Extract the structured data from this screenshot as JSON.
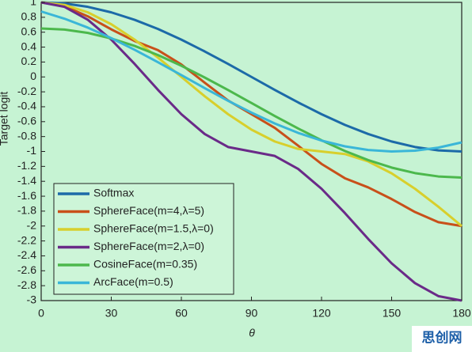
{
  "chart_data": {
    "type": "line",
    "xlabel": "θ",
    "ylabel": "Target logit",
    "x": [
      0,
      10,
      20,
      30,
      40,
      50,
      60,
      70,
      80,
      90,
      100,
      110,
      120,
      130,
      140,
      150,
      160,
      170,
      180
    ],
    "xlim": [
      0,
      180
    ],
    "xticks": [
      0,
      30,
      60,
      90,
      120,
      150,
      180
    ],
    "ylim": [
      -3,
      1
    ],
    "yticks": [
      1,
      0.8,
      0.6,
      0.4,
      0.2,
      0,
      -0.2,
      -0.4,
      -0.6,
      -0.8,
      -1,
      -1.2,
      -1.4,
      -1.6,
      -1.8,
      -2,
      -2.2,
      -2.4,
      -2.6,
      -2.8,
      -3
    ],
    "legend": "lower left",
    "series": [
      {
        "name": "Softmax",
        "color": "#1c6aa8",
        "values": [
          1,
          0.985,
          0.94,
          0.866,
          0.766,
          0.643,
          0.5,
          0.342,
          0.174,
          0,
          -0.174,
          -0.342,
          -0.5,
          -0.643,
          -0.766,
          -0.866,
          -0.94,
          -0.985,
          -1
        ]
      },
      {
        "name": "SphereFace(m=4,λ=5)",
        "color": "#c8501a",
        "values": [
          1,
          0.948,
          0.812,
          0.638,
          0.482,
          0.359,
          0.167,
          -0.077,
          -0.316,
          -0.5,
          -0.684,
          -0.923,
          -1.167,
          -1.359,
          -1.482,
          -1.638,
          -1.812,
          -1.948,
          -2
        ]
      },
      {
        "name": "SphereFace(m=1.5,λ=0)",
        "color": "#d8cf2c",
        "values": [
          1,
          0.966,
          0.866,
          0.707,
          0.5,
          0.259,
          0,
          -0.259,
          -0.5,
          -0.707,
          -0.866,
          -0.966,
          -1,
          -1.034,
          -1.134,
          -1.293,
          -1.5,
          -1.741,
          -2
        ]
      },
      {
        "name": "SphereFace(m=2,λ=0)",
        "color": "#6a2a88",
        "values": [
          1,
          0.94,
          0.766,
          0.5,
          0.174,
          -0.174,
          -0.5,
          -0.766,
          -0.94,
          -1,
          -1.06,
          -1.234,
          -1.5,
          -1.826,
          -2.174,
          -2.5,
          -2.766,
          -2.94,
          -3
        ]
      },
      {
        "name": "CosineFace(m=0.35)",
        "color": "#4cb84c",
        "values": [
          0.65,
          0.635,
          0.59,
          0.516,
          0.416,
          0.293,
          0.15,
          -0.008,
          -0.176,
          -0.35,
          -0.524,
          -0.692,
          -0.85,
          -0.993,
          -1.116,
          -1.216,
          -1.29,
          -1.335,
          -1.35
        ]
      },
      {
        "name": "ArcFace(m=0.5)",
        "color": "#3ab6d8",
        "values": [
          0.878,
          0.781,
          0.661,
          0.52,
          0.364,
          0.197,
          0.024,
          -0.15,
          -0.32,
          -0.479,
          -0.625,
          -0.751,
          -0.854,
          -0.931,
          -0.98,
          -1,
          -0.989,
          -0.948,
          -0.878
        ]
      }
    ]
  },
  "watermark": "思创网"
}
